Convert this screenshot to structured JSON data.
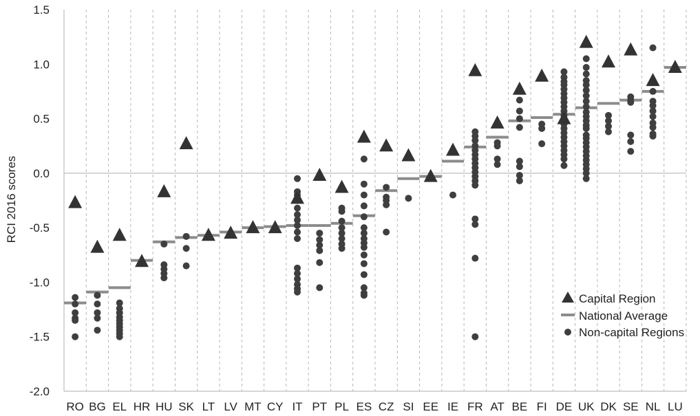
{
  "chart_data": {
    "type": "scatter",
    "ylabel": "RCI 2016  scores",
    "ylim": [
      -2.0,
      1.5
    ],
    "yticks": [
      1.5,
      1.0,
      0.5,
      0.0,
      -0.5,
      -1.0,
      -1.5,
      -2.0
    ],
    "ytick_labels": [
      "1.5",
      "1.0",
      "0.5",
      "0.0",
      "-0.5",
      "-1.0",
      "-1.5",
      "-2.0"
    ],
    "grid": "vertical-dashed",
    "legend_position": "bottom-right",
    "legend": [
      {
        "key": "capital",
        "label": "Capital Region"
      },
      {
        "key": "national",
        "label": "National Average"
      },
      {
        "key": "noncapital",
        "label": "Non-capital Regions"
      }
    ],
    "colors": {
      "capital": "#333333",
      "national": "#8c8c8c",
      "noncapital": "#3f3f3f",
      "grid": "#b5b5b5",
      "axis": "#bdbdbd"
    },
    "categories": [
      "RO",
      "BG",
      "EL",
      "HR",
      "HU",
      "SK",
      "LT",
      "LV",
      "MT",
      "CY",
      "IT",
      "PT",
      "PL",
      "ES",
      "CZ",
      "SI",
      "EE",
      "IE",
      "FR",
      "AT",
      "BE",
      "FI",
      "DE",
      "UK",
      "DK",
      "SE",
      "NL",
      "LU"
    ],
    "series": [
      {
        "name": "Capital Region",
        "key": "capital",
        "values": [
          -0.27,
          -0.68,
          -0.57,
          -0.81,
          -0.17,
          0.27,
          -0.57,
          -0.55,
          -0.5,
          -0.5,
          -0.23,
          -0.02,
          -0.13,
          0.33,
          0.25,
          0.16,
          -0.03,
          0.21,
          0.94,
          0.46,
          0.77,
          0.89,
          0.5,
          1.2,
          1.02,
          1.13,
          0.85,
          0.97
        ]
      },
      {
        "name": "National Average",
        "key": "national",
        "values": [
          -1.19,
          -1.09,
          -1.05,
          -0.8,
          -0.63,
          -0.59,
          -0.57,
          -0.54,
          -0.5,
          -0.49,
          -0.48,
          -0.48,
          -0.46,
          -0.39,
          -0.16,
          -0.05,
          -0.03,
          0.11,
          0.24,
          0.33,
          0.48,
          0.51,
          0.54,
          0.6,
          0.64,
          0.67,
          0.75,
          0.97
        ]
      },
      {
        "name": "Non-capital Regions",
        "key": "noncapital",
        "values": [
          [
            -1.14,
            -1.2,
            -1.28,
            -1.33,
            -1.35,
            -1.5
          ],
          [
            -1.12,
            -1.2,
            -1.28,
            -1.33,
            -1.44
          ],
          [
            -1.19,
            -1.24,
            -1.28,
            -1.32,
            -1.35,
            -1.38,
            -1.41,
            -1.44,
            -1.47,
            -1.5
          ],
          [],
          [
            -0.65,
            -0.84,
            -0.88,
            -0.92,
            -0.96
          ],
          [
            -0.58,
            -0.69,
            -0.85
          ],
          [],
          [],
          [],
          [],
          [
            -0.05,
            -0.17,
            -0.2,
            -0.25,
            -0.32,
            -0.38,
            -0.43,
            -0.48,
            -0.54,
            -0.6,
            -0.87,
            -0.92,
            -0.97,
            -1.02,
            -1.06,
            -1.09
          ],
          [
            -0.55,
            -0.61,
            -0.66,
            -0.71,
            -0.82,
            -1.05
          ],
          [
            -0.32,
            -0.35,
            -0.44,
            -0.5,
            -0.55,
            -0.6,
            -0.65,
            -0.69
          ],
          [
            0.13,
            -0.1,
            -0.2,
            -0.3,
            -0.4,
            -0.5,
            -0.55,
            -0.6,
            -0.64,
            -0.68,
            -0.75,
            -0.83,
            -0.93,
            -1.05,
            -1.1,
            -1.12
          ],
          [
            -0.13,
            -0.22,
            -0.25,
            -0.29,
            -0.54
          ],
          [
            -0.23
          ],
          [],
          [
            -0.2
          ],
          [
            0.38,
            0.34,
            0.3,
            0.25,
            0.21,
            0.17,
            0.13,
            0.09,
            0.05,
            0.01,
            -0.03,
            -0.07,
            -0.11,
            -0.42,
            -0.47,
            -0.78,
            -1.5
          ],
          [
            0.28,
            0.25,
            0.13,
            0.08
          ],
          [
            0.67,
            0.57,
            0.5,
            0.42,
            0.11,
            0.06,
            -0.02,
            -0.07
          ],
          [
            0.45,
            0.41,
            0.27
          ],
          [
            0.93,
            0.88,
            0.84,
            0.81,
            0.77,
            0.73,
            0.69,
            0.65,
            0.61,
            0.57,
            0.53,
            0.49,
            0.45,
            0.41,
            0.37,
            0.33,
            0.29,
            0.25,
            0.21,
            0.17,
            0.13,
            0.07
          ],
          [
            1.05,
            0.97,
            0.91,
            0.85,
            0.81,
            0.76,
            0.71,
            0.66,
            0.61,
            0.56,
            0.52,
            0.48,
            0.44,
            0.41,
            0.35,
            0.32,
            0.28,
            0.24,
            0.2,
            0.16,
            0.12,
            0.08,
            0.04,
            0.0,
            -0.05
          ],
          [
            0.53,
            0.48,
            0.43,
            0.38
          ],
          [
            0.7,
            0.67,
            0.65,
            0.35,
            0.29,
            0.2
          ],
          [
            1.15,
            0.75,
            0.66,
            0.62,
            0.57,
            0.52,
            0.46,
            0.42,
            0.36,
            0.34
          ],
          []
        ]
      }
    ]
  }
}
